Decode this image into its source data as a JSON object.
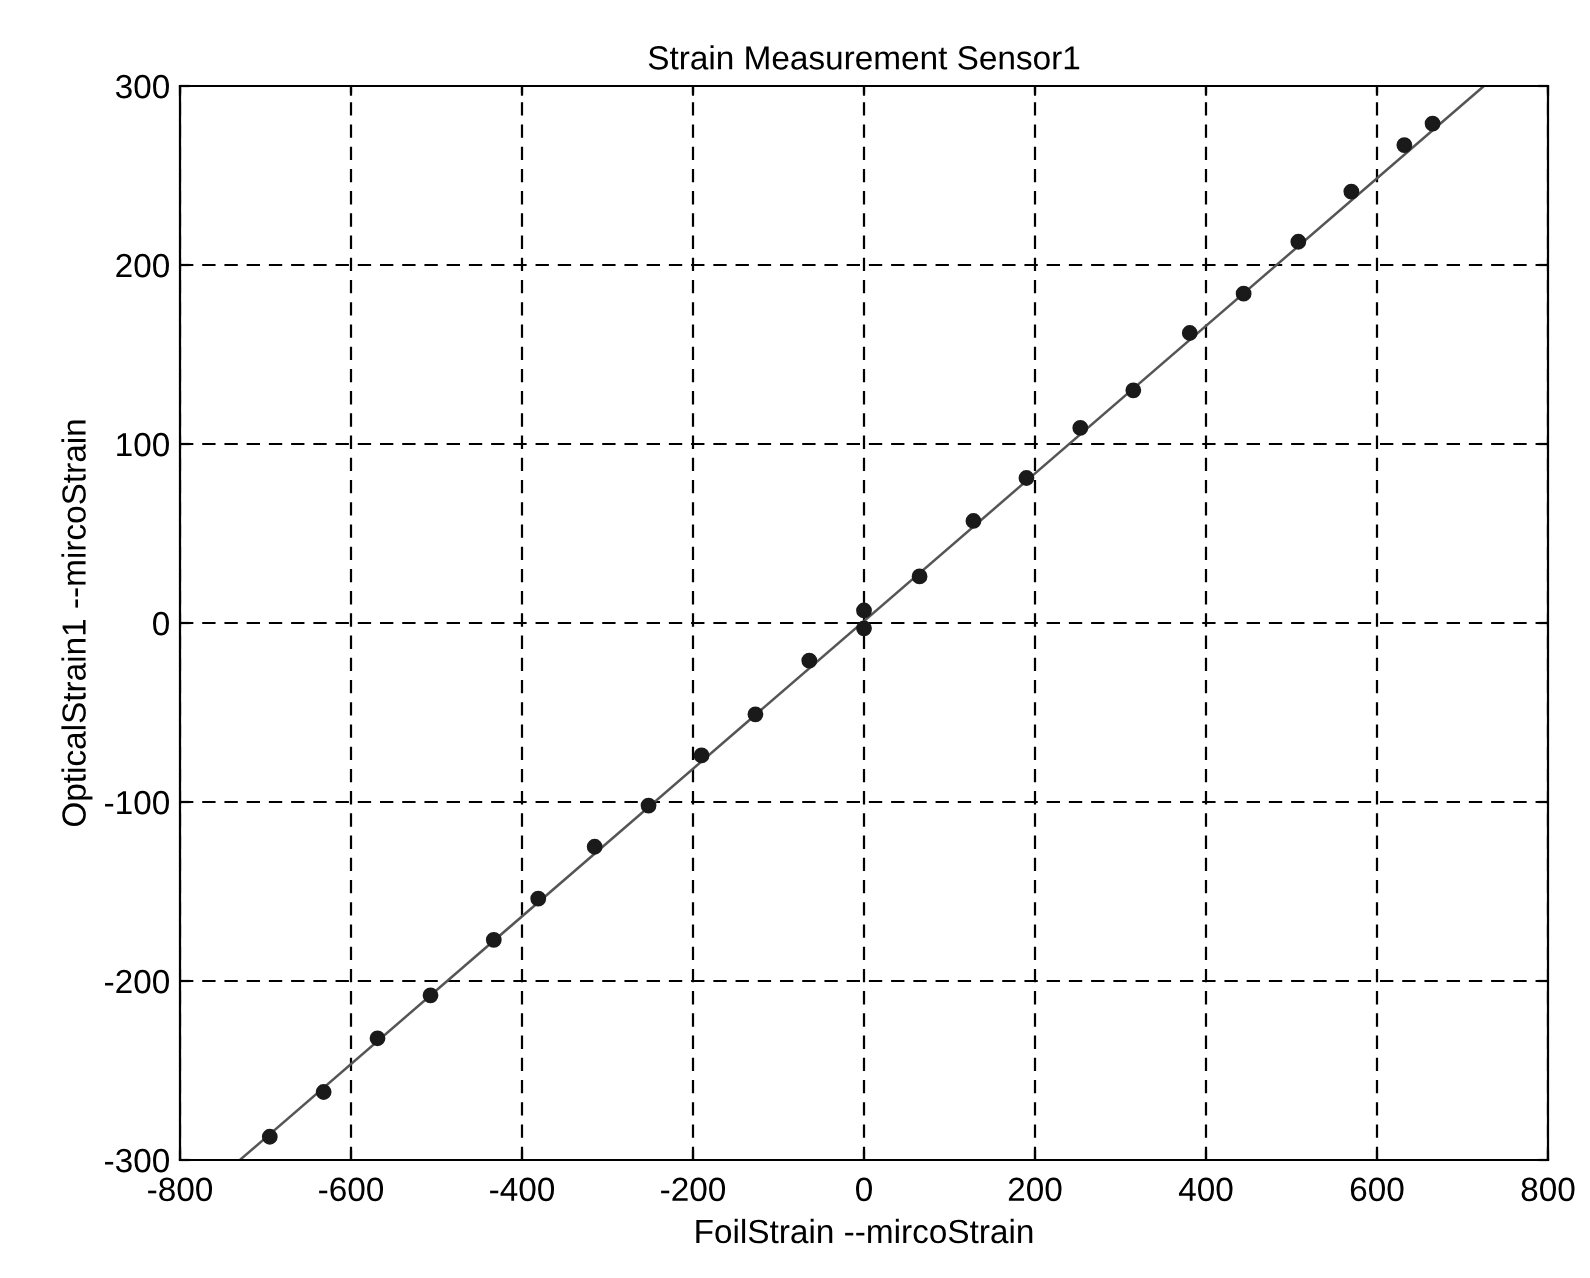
{
  "chart_data": {
    "type": "scatter",
    "title": "Strain Measurement Sensor1",
    "xlabel": "FoilStrain --mircoStrain",
    "ylabel": "OpticalStrain1 --mircoStrain",
    "xlim": [
      -800,
      800
    ],
    "xticks": [
      -800,
      -600,
      -400,
      -200,
      0,
      200,
      400,
      600,
      800
    ],
    "ylim": [
      -300,
      300
    ],
    "yticks": [
      -300,
      -200,
      -100,
      0,
      100,
      200,
      300
    ],
    "grid": true,
    "legend": false,
    "series": [
      {
        "color": "#1a1a1a",
        "marker": "circle",
        "x": [
          -695,
          -632,
          -569,
          -507,
          -433,
          -381,
          -315,
          -252,
          -190,
          -127,
          -64,
          0,
          0,
          65,
          128,
          190,
          253,
          315,
          381,
          444,
          508,
          570,
          632,
          665
        ],
        "values": [
          -287,
          -262,
          -232,
          -208,
          -177,
          -154,
          -125,
          -102,
          -74,
          -51,
          -21,
          -3,
          7,
          26,
          57,
          81,
          109,
          130,
          162,
          184,
          213,
          241,
          267,
          279
        ]
      },
      {
        "type": "line",
        "color": "#555555",
        "marker": "none",
        "line_style": "solid",
        "x": [
          -730,
          725
        ],
        "values": [
          -300,
          300
        ]
      }
    ]
  }
}
